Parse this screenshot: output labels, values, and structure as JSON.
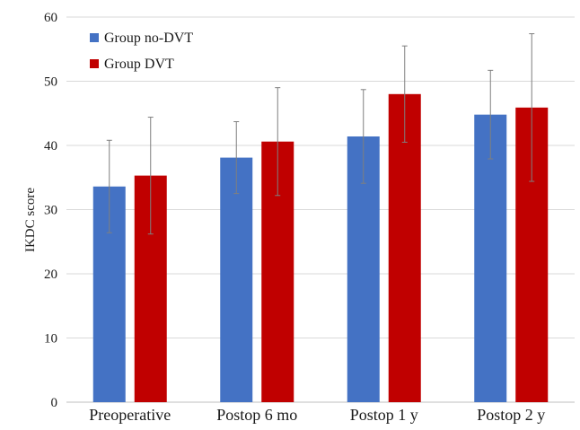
{
  "chart_data": {
    "type": "bar",
    "title": "",
    "xlabel": "",
    "ylabel": "IKDC score",
    "ylim": [
      0,
      60
    ],
    "yticks": [
      0,
      10,
      20,
      30,
      40,
      50,
      60
    ],
    "grid": true,
    "legend_position": "top-left",
    "categories": [
      "Preoperative",
      "Postop 6 mo",
      "Postop 1 y",
      "Postop 2 y"
    ],
    "series": [
      {
        "name": "Group no-DVT",
        "color": "#4472c4",
        "values": [
          33.6,
          38.1,
          41.4,
          44.8
        ],
        "error": [
          7.2,
          5.6,
          7.3,
          6.9
        ]
      },
      {
        "name": "Group DVT",
        "color": "#c00000",
        "values": [
          35.3,
          40.6,
          48.0,
          45.9
        ],
        "error": [
          9.1,
          8.4,
          7.5,
          11.5
        ]
      }
    ]
  }
}
